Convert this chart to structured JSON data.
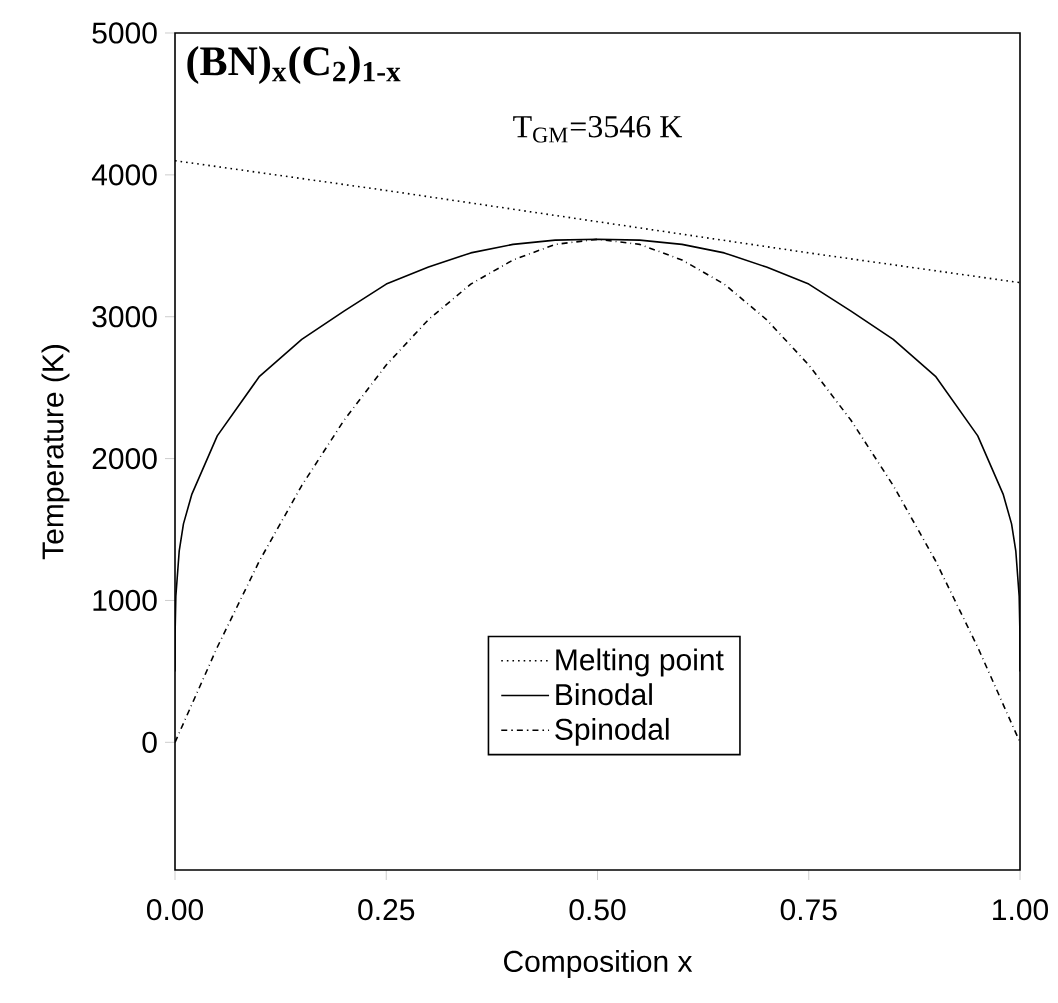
{
  "chart_data": {
    "type": "line",
    "xlabel": "Composition x",
    "ylabel": "Temperature (K)",
    "annotations": [
      "(BN)$_{x}$(C$_{2}$)$_{1-x}$",
      "T$_{GM}$=3546 K"
    ],
    "xlim": [
      0,
      1
    ],
    "ylim": [
      -900,
      5000
    ],
    "xticks": [
      {
        "value": 0,
        "label": "0.00"
      },
      {
        "value": 0.25,
        "label": "0.25"
      },
      {
        "value": 0.5,
        "label": "0.50"
      },
      {
        "value": 0.75,
        "label": "0.75"
      },
      {
        "value": 1,
        "label": "1.00"
      }
    ],
    "yticks": [
      0,
      1000,
      2000,
      3000,
      4000,
      5000
    ],
    "legend": "bottom",
    "grid": false,
    "marker": "none",
    "series": [
      {
        "name": "Melting point",
        "color": "#000000",
        "line_style": "dotted",
        "x": [
          0,
          0.25,
          0.5,
          0.75,
          1
        ],
        "values": [
          4100,
          3890,
          3670,
          3450,
          3240
        ]
      },
      {
        "name": "Binodal",
        "color": "#000000",
        "line_style": "solid",
        "x": [
          0,
          0.0001,
          0.001,
          0.005,
          0.01,
          0.02,
          0.05,
          0.1,
          0.15,
          0.2,
          0.25,
          0.3,
          0.35,
          0.4,
          0.45,
          0.5,
          0.55,
          0.6,
          0.65,
          0.7,
          0.75,
          0.8,
          0.85,
          0.9,
          0.95,
          0.98,
          0.99,
          0.995,
          0.999,
          0.9999,
          1
        ],
        "values": [
          500,
          770,
          1030,
          1350,
          1540,
          1750,
          2160,
          2580,
          2840,
          3040,
          3230,
          3350,
          3450,
          3510,
          3540,
          3546,
          3540,
          3510,
          3450,
          3350,
          3230,
          3040,
          2840,
          2580,
          2160,
          1750,
          1540,
          1350,
          1030,
          770,
          500
        ]
      },
      {
        "name": "Spinodal",
        "color": "#000000",
        "line_style": "dashdot",
        "x": [
          0,
          0.05,
          0.1,
          0.15,
          0.2,
          0.25,
          0.3,
          0.35,
          0.4,
          0.45,
          0.5,
          0.55,
          0.6,
          0.65,
          0.7,
          0.75,
          0.8,
          0.85,
          0.9,
          0.95,
          1
        ],
        "values": [
          0,
          670,
          1280,
          1810,
          2270,
          2660,
          2980,
          3230,
          3400,
          3510,
          3546,
          3510,
          3400,
          3230,
          2980,
          2660,
          2270,
          1810,
          1280,
          670,
          0
        ]
      }
    ]
  }
}
